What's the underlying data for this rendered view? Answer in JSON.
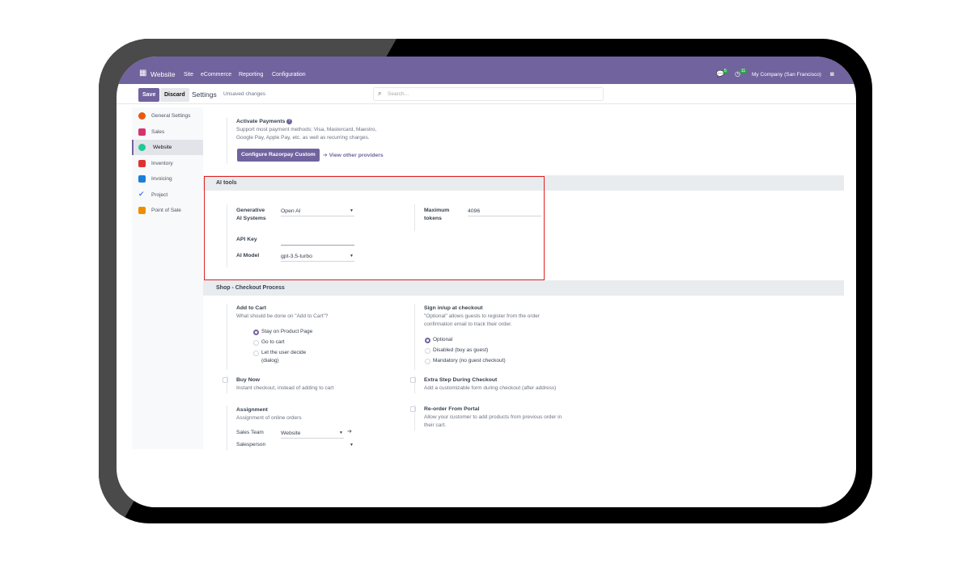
{
  "topbar": {
    "app": "Website",
    "menu": [
      "Site",
      "eCommerce",
      "Reporting",
      "Configuration"
    ],
    "chat_count": "5",
    "activity_count": "11",
    "company": "My Company (San Francisco)"
  },
  "control": {
    "save": "Save",
    "discard": "Discard",
    "title": "Settings",
    "status": "Unsaved changes",
    "search_placeholder": "Search..."
  },
  "sidebar": {
    "items": [
      {
        "label": "General Settings",
        "color": "#e8590c"
      },
      {
        "label": "Sales",
        "color": "#d6336c"
      },
      {
        "label": "Website",
        "color": "#20c997"
      },
      {
        "label": "Inventory",
        "color": "#e03131"
      },
      {
        "label": "Invoicing",
        "color": "#1c7ed6"
      },
      {
        "label": "Project",
        "color": "#5c7cfa"
      },
      {
        "label": "Point of Sale",
        "color": "#f08c00"
      }
    ],
    "active": "Website"
  },
  "payments": {
    "title": "Activate Payments",
    "desc1": "Support most payment methods; Visa, Mastercard, Maestro,",
    "desc2": "Google Pay, Apple Pay, etc. as well as recurring charges.",
    "configure": "Configure Razorpay Custom",
    "other": "View other providers"
  },
  "ai_tools": {
    "header": "AI tools",
    "gen_label1": "Generative",
    "gen_label2": "AI Systems",
    "gen_value": "Open AI",
    "max_label1": "Maximum",
    "max_label2": "tokens",
    "max_value": "4096",
    "api_label": "API Key",
    "api_value": "",
    "model_label": "AI Model",
    "model_value": "gpt-3.5-turbo"
  },
  "checkout": {
    "header": "Shop - Checkout Process",
    "add_to_cart": {
      "title": "Add to Cart",
      "desc": "What should be done on \"Add to Cart\"?",
      "options": [
        "Stay on Product Page",
        "Go to cart",
        "Let the user decide",
        "(dialog)"
      ],
      "selected": "Stay on Product Page"
    },
    "sign_in": {
      "title": "Sign in/up at checkout",
      "desc1": "\"Optional\" allows guests to register from the order",
      "desc2": "confirmation email to track their order.",
      "options": [
        "Optional",
        "Disabled (buy as guest)",
        "Mandatory (no guest checkout)"
      ],
      "selected": "Optional"
    },
    "buy_now": {
      "title": "Buy Now",
      "desc": "Instant checkout, instead of adding to cart",
      "checked": false
    },
    "extra_step": {
      "title": "Extra Step During Checkout",
      "desc": "Add a customizable form during checkout (after address)",
      "checked": false
    },
    "assignment": {
      "title": "Assignment",
      "desc": "Assignment of online orders",
      "team_label": "Sales Team",
      "team_value": "Website",
      "person_label": "Salesperson",
      "person_value": ""
    },
    "reorder": {
      "title": "Re-order From Portal",
      "desc1": "Allow your customer to add products from previous order in",
      "desc2": "their cart.",
      "checked": false
    }
  },
  "colors": {
    "brand": "#71639e",
    "highlight": "#e02020"
  }
}
